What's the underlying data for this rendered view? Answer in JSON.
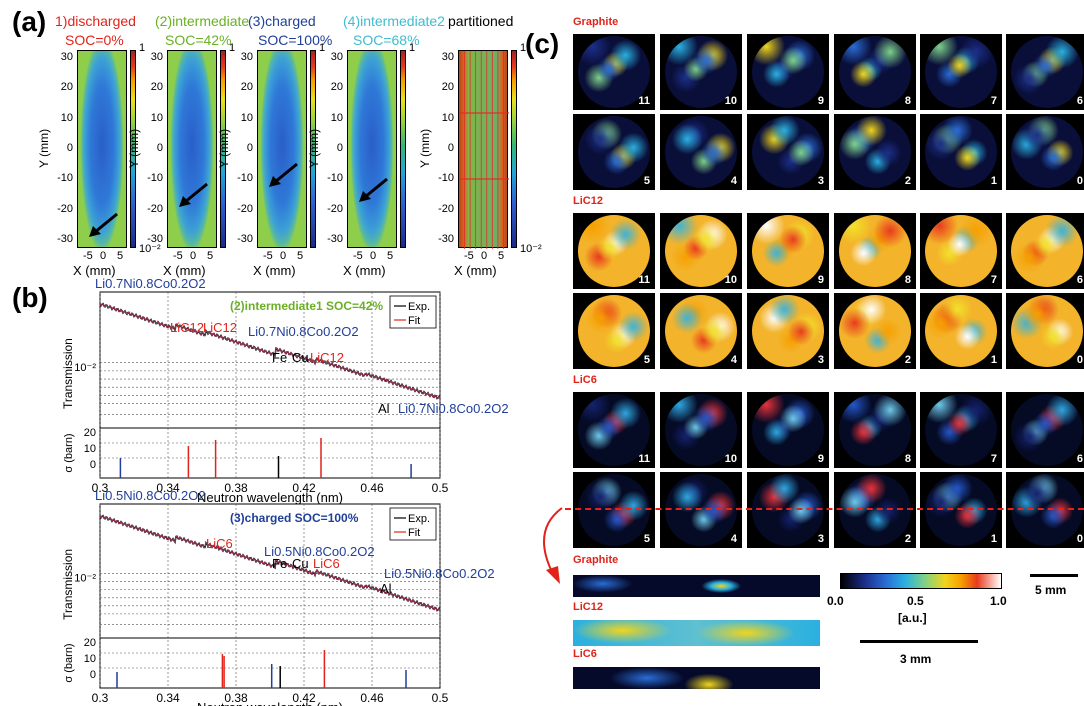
{
  "panel_a": {
    "letter": "(a)",
    "states": [
      {
        "title": "1)discharged",
        "soc": "SOC=0%",
        "color": "#e2231a"
      },
      {
        "title": "(2)intermediate",
        "soc": "SOC=42%",
        "color": "#6ab023"
      },
      {
        "title": "(3)charged",
        "soc": "SOC=100%",
        "color": "#1f3f99"
      },
      {
        "title": "(4)intermediate2",
        "soc": "SOC=68%",
        "color": "#3fbcd0"
      },
      {
        "title": "partitioned",
        "soc": "",
        "color": "#000000"
      }
    ],
    "y_ticks": [
      "30",
      "20",
      "10",
      "0",
      "-10",
      "-20",
      "-30"
    ],
    "x_ticks": [
      "-5",
      "0",
      "5"
    ],
    "y_label": "Y (mm)",
    "x_label": "X (mm)",
    "cbar_top": "1",
    "cbar_bottom": "10⁻²"
  },
  "panel_b": {
    "letter": "(b)",
    "plots": [
      {
        "header": "(2)intermediate1 SOC=42%",
        "header_color": "#6ab023",
        "top_left_label": "Li0.7Ni0.8Co0.2O2",
        "annotations": [
          {
            "text": "LiC12",
            "color": "#e2231a"
          },
          {
            "text": "LiC12",
            "color": "#e2231a"
          },
          {
            "text": "Li0.7Ni0.8Co0.2O2",
            "color": "#1f3f99"
          },
          {
            "text": "Fe",
            "color": "#000000"
          },
          {
            "text": "Cu",
            "color": "#000000"
          },
          {
            "text": "LiC12",
            "color": "#e2231a"
          },
          {
            "text": "Al",
            "color": "#000000"
          },
          {
            "text": "Li0.7Ni0.8Co0.2O2",
            "color": "#1f3f99"
          }
        ]
      },
      {
        "header": "(3)charged SOC=100%",
        "header_color": "#1f3f99",
        "top_left_label": "Li0.5Ni0.8Co0.2O2",
        "annotations": [
          {
            "text": "LiC6",
            "color": "#e2231a"
          },
          {
            "text": "Li0.5Ni0.8Co0.2O2",
            "color": "#1f3f99"
          },
          {
            "text": "Fe",
            "color": "#000000"
          },
          {
            "text": "Cu",
            "color": "#000000"
          },
          {
            "text": "LiC6",
            "color": "#e2231a"
          },
          {
            "text": "Al",
            "color": "#000000"
          },
          {
            "text": "Li0.5Ni0.8Co0.2O2",
            "color": "#1f3f99"
          }
        ]
      }
    ],
    "legend": [
      "Exp.",
      "Fit"
    ],
    "y_label_top": "Transmission",
    "y_label_bottom": "σ (barn)",
    "x_label": "Neutron wavelength (nm)",
    "y_tick_top": "10⁻²",
    "sigma_ticks": [
      "20",
      "10",
      "0"
    ],
    "x_ticks": [
      "0.3",
      "0.34",
      "0.38",
      "0.42",
      "0.46",
      "0.5"
    ]
  },
  "panel_c": {
    "letter": "(c)",
    "groups": [
      {
        "title": "Graphite",
        "row1": [
          "11",
          "10",
          "9",
          "8",
          "7",
          "6"
        ],
        "row2": [
          "5",
          "4",
          "3",
          "2",
          "1",
          "0"
        ]
      },
      {
        "title": "LiC12",
        "row1": [
          "11",
          "10",
          "9",
          "8",
          "7",
          "6"
        ],
        "row2": [
          "5",
          "4",
          "3",
          "2",
          "1",
          "0"
        ]
      },
      {
        "title": "LiC6",
        "row1": [
          "11",
          "10",
          "9",
          "8",
          "7",
          "6"
        ],
        "row2": [
          "5",
          "4",
          "3",
          "2",
          "1",
          "0"
        ]
      }
    ],
    "section_titles": [
      "Graphite",
      "LiC12",
      "LiC6"
    ],
    "colorbar_ticks": [
      "0.0",
      "0.5",
      "1.0"
    ],
    "colorbar_unit": "[a.u.]",
    "scale_5mm": "5 mm",
    "scale_3mm": "3 mm"
  }
}
